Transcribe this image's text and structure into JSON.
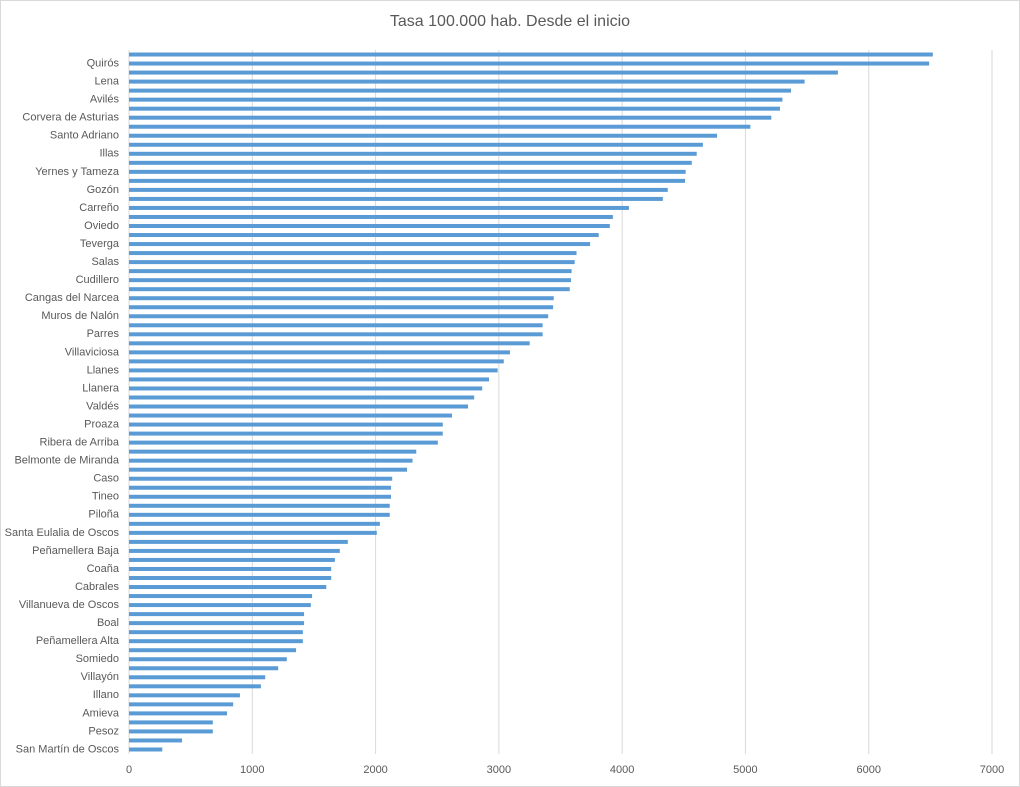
{
  "chart_data": {
    "type": "barh",
    "title": "Tasa 100.000 hab. Desde el inicio",
    "categories": [
      null,
      "Quirós",
      null,
      "Lena",
      null,
      "Avilés",
      null,
      "Corvera de Asturias",
      null,
      "Santo Adriano",
      null,
      "Illas",
      null,
      "Yernes y Tameza",
      null,
      "Gozón",
      null,
      "Carreño",
      null,
      "Oviedo",
      null,
      "Teverga",
      null,
      "Salas",
      null,
      "Cudillero",
      null,
      "Cangas del Narcea",
      null,
      "Muros de Nalón",
      null,
      "Parres",
      null,
      "Villaviciosa",
      null,
      "Llanes",
      null,
      "Llanera",
      null,
      "Valdés",
      null,
      "Proaza",
      null,
      "Ribera de Arriba",
      null,
      "Belmonte de Miranda",
      null,
      "Caso",
      null,
      "Tineo",
      null,
      "Piloña",
      null,
      "Santa Eulalia de Oscos",
      null,
      "Peñamellera Baja",
      null,
      "Coaña",
      null,
      "Cabrales",
      null,
      "Villanueva de Oscos",
      null,
      "Boal",
      null,
      "Peñamellera Alta",
      null,
      "Somiedo",
      null,
      "Villayón",
      null,
      "Illano",
      null,
      "Amieva",
      null,
      "Pesoz",
      null,
      "San Martín de Oscos"
    ],
    "values": [
      6520,
      6490,
      5750,
      5480,
      5370,
      5300,
      5280,
      5210,
      5040,
      4770,
      4655,
      4605,
      4565,
      4515,
      4510,
      4370,
      4330,
      4055,
      3925,
      3900,
      3810,
      3740,
      3630,
      3615,
      3590,
      3585,
      3575,
      3445,
      3440,
      3400,
      3355,
      3355,
      3250,
      3090,
      3040,
      2990,
      2920,
      2865,
      2800,
      2750,
      2620,
      2545,
      2545,
      2505,
      2330,
      2300,
      2255,
      2135,
      2125,
      2125,
      2115,
      2115,
      2035,
      2010,
      1775,
      1710,
      1670,
      1640,
      1640,
      1600,
      1485,
      1475,
      1420,
      1420,
      1410,
      1410,
      1355,
      1280,
      1210,
      1105,
      1070,
      900,
      845,
      795,
      680,
      680,
      430,
      270
    ],
    "color": "#5b9bd5",
    "xlim": [
      0,
      7000
    ],
    "xticks": [
      0,
      1000,
      2000,
      3000,
      4000,
      5000,
      6000,
      7000
    ],
    "grid": true
  }
}
